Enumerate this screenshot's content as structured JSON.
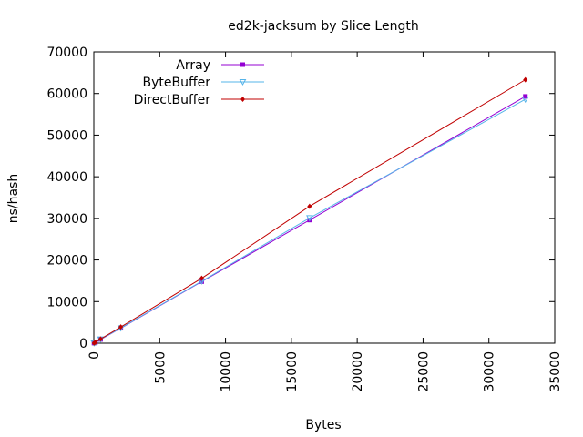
{
  "chart_data": {
    "type": "line",
    "title": "ed2k-jacksum by Slice Length",
    "xlabel": "Bytes",
    "ylabel": "ns/hash",
    "xlim": [
      0,
      35000
    ],
    "ylim": [
      0,
      70000
    ],
    "xticks": [
      0,
      5000,
      10000,
      15000,
      20000,
      25000,
      30000,
      35000
    ],
    "yticks": [
      0,
      10000,
      20000,
      30000,
      40000,
      50000,
      60000,
      70000
    ],
    "grid": false,
    "legend_position": "top-left",
    "series": [
      {
        "name": "Array",
        "color": "#9400d3",
        "marker": "square",
        "x": [
          16,
          128,
          512,
          2048,
          8192,
          16384,
          32768
        ],
        "y": [
          30,
          200,
          900,
          3600,
          14800,
          29600,
          59300
        ]
      },
      {
        "name": "ByteBuffer",
        "color": "#56b4e9",
        "marker": "triangle-down",
        "x": [
          16,
          128,
          512,
          2048,
          8192,
          16384,
          32768
        ],
        "y": [
          30,
          200,
          950,
          3650,
          14900,
          30100,
          58600
        ]
      },
      {
        "name": "DirectBuffer",
        "color": "#c00000",
        "marker": "diamond",
        "x": [
          16,
          128,
          512,
          2048,
          8192,
          16384,
          32768
        ],
        "y": [
          40,
          230,
          1000,
          3900,
          15600,
          32900,
          63300
        ]
      }
    ]
  }
}
